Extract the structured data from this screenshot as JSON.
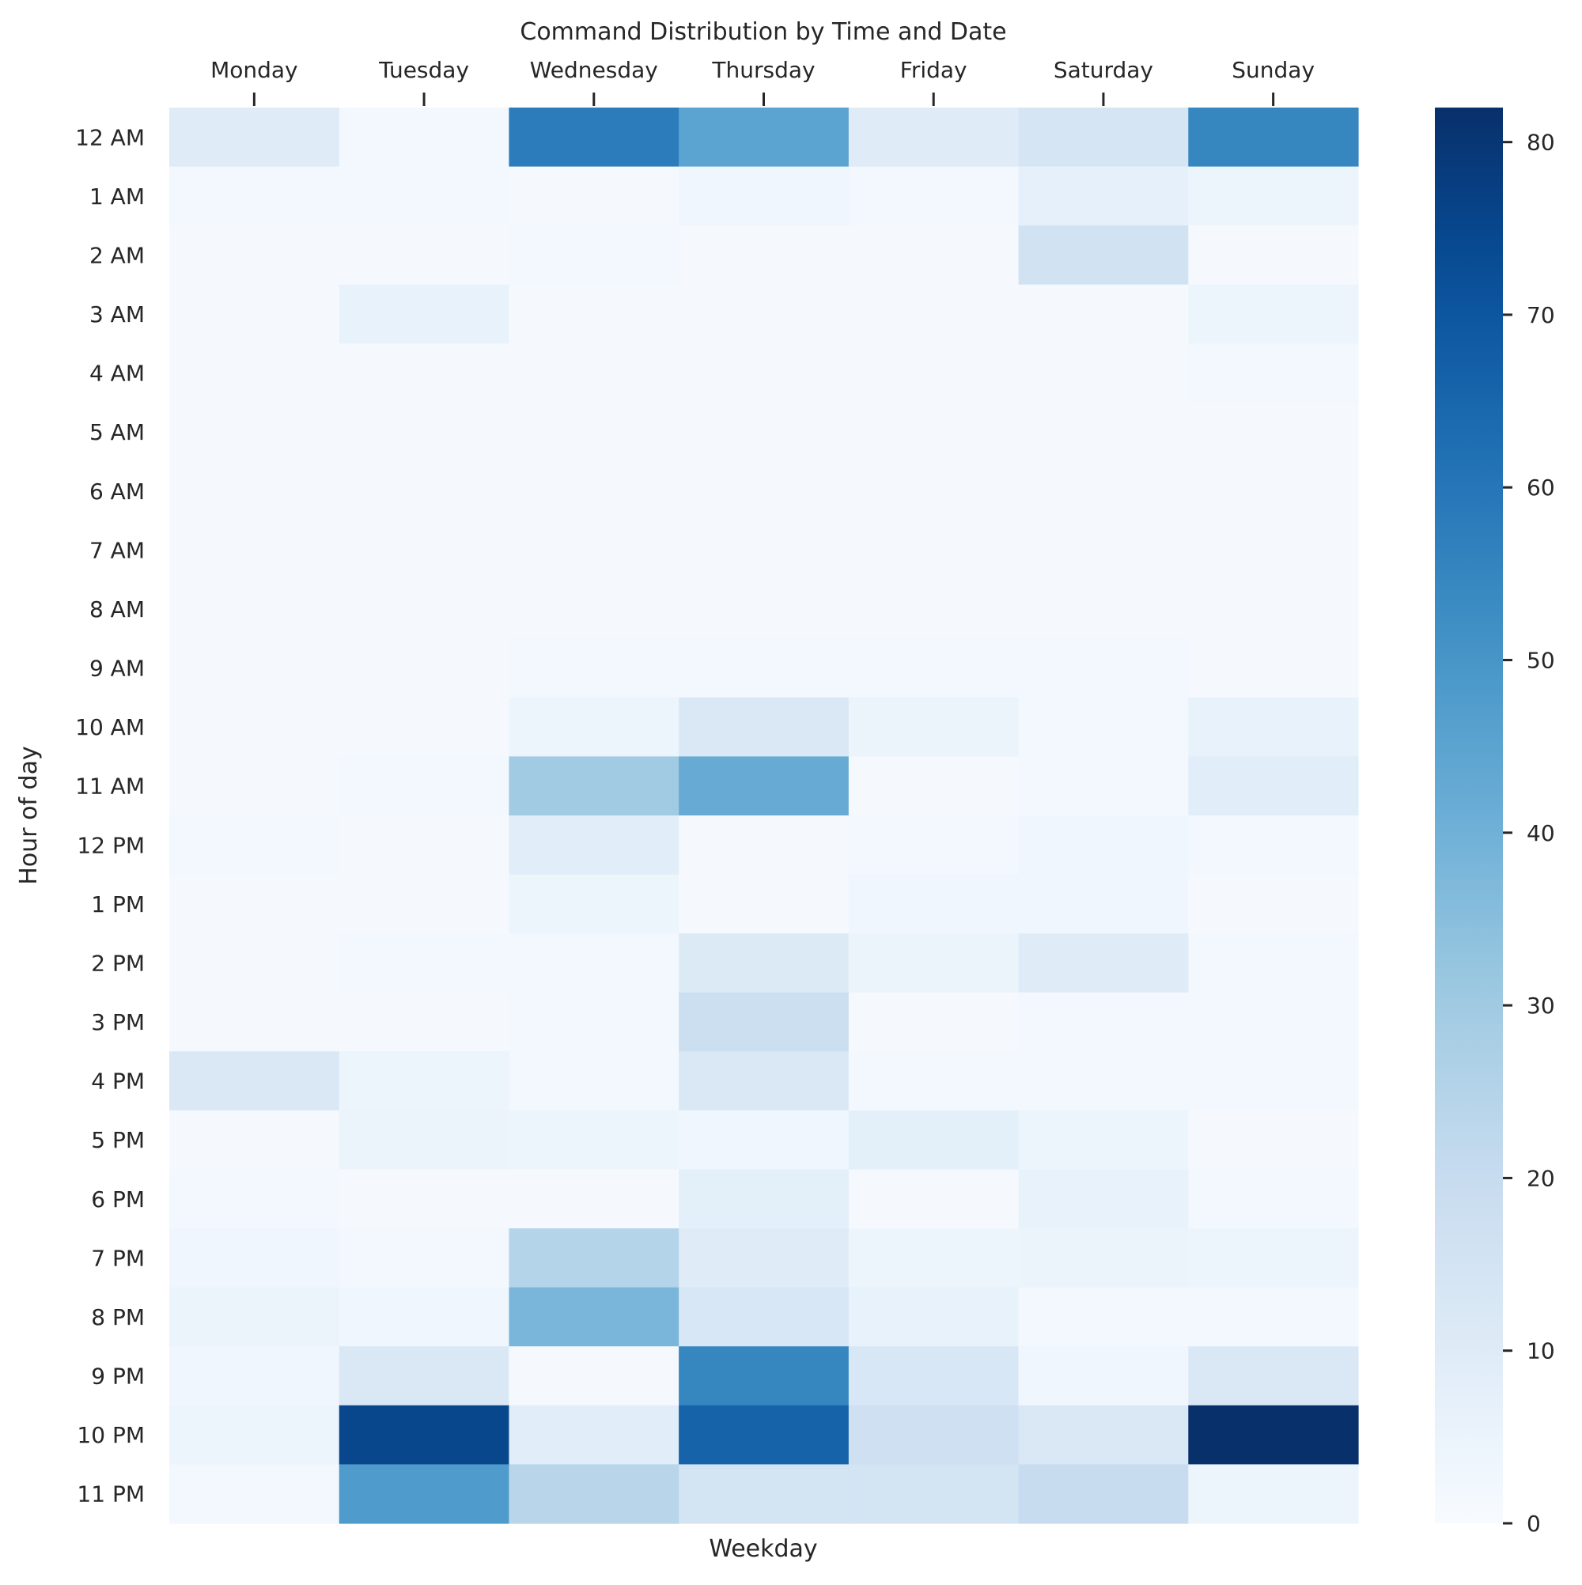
{
  "chart_data": {
    "type": "heatmap",
    "title": "Command Distribution by Time and Date",
    "xlabel": "Weekday",
    "ylabel": "Hour of day",
    "x_axis_position": "top",
    "colormap": "Blues",
    "colorbar": {
      "range": [
        0,
        82
      ],
      "ticks": [
        0,
        10,
        20,
        30,
        40,
        50,
        60,
        70,
        80
      ]
    },
    "columns": [
      "Monday",
      "Tuesday",
      "Wednesday",
      "Thursday",
      "Friday",
      "Saturday",
      "Sunday"
    ],
    "rows": [
      "12 AM",
      "1 AM",
      "2 AM",
      "3 AM",
      "4 AM",
      "5 AM",
      "6 AM",
      "7 AM",
      "8 AM",
      "9 AM",
      "10 AM",
      "11 AM",
      "12 PM",
      "1 PM",
      "2 PM",
      "3 PM",
      "4 PM",
      "5 PM",
      "6 PM",
      "7 PM",
      "8 PM",
      "9 PM",
      "10 PM",
      "11 PM"
    ],
    "values": [
      [
        10,
        2,
        58,
        45,
        10,
        14,
        55
      ],
      [
        2,
        2,
        1,
        3,
        2,
        7,
        4
      ],
      [
        1,
        1,
        2,
        1,
        1,
        16,
        1
      ],
      [
        1,
        6,
        1,
        1,
        1,
        1,
        4
      ],
      [
        1,
        1,
        1,
        1,
        1,
        1,
        2
      ],
      [
        1,
        1,
        1,
        1,
        1,
        1,
        1
      ],
      [
        1,
        1,
        1,
        1,
        1,
        1,
        1
      ],
      [
        1,
        1,
        1,
        1,
        1,
        1,
        1
      ],
      [
        1,
        1,
        1,
        1,
        1,
        1,
        1
      ],
      [
        1,
        1,
        2,
        2,
        2,
        2,
        1
      ],
      [
        1,
        1,
        4,
        12,
        5,
        2,
        6
      ],
      [
        1,
        2,
        30,
        42,
        1,
        2,
        9
      ],
      [
        2,
        1,
        9,
        1,
        2,
        3,
        2
      ],
      [
        1,
        1,
        4,
        1,
        3,
        3,
        1
      ],
      [
        1,
        2,
        2,
        11,
        5,
        10,
        2
      ],
      [
        1,
        1,
        2,
        18,
        1,
        2,
        2
      ],
      [
        12,
        4,
        2,
        12,
        2,
        2,
        2
      ],
      [
        1,
        5,
        4,
        3,
        8,
        4,
        1
      ],
      [
        2,
        1,
        1,
        8,
        1,
        6,
        2
      ],
      [
        3,
        2,
        25,
        10,
        4,
        5,
        4
      ],
      [
        5,
        3,
        38,
        13,
        6,
        2,
        2
      ],
      [
        3,
        12,
        1,
        55,
        13,
        3,
        12
      ],
      [
        4,
        75,
        9,
        66,
        17,
        12,
        82
      ],
      [
        2,
        48,
        24,
        15,
        15,
        20,
        4
      ]
    ]
  }
}
